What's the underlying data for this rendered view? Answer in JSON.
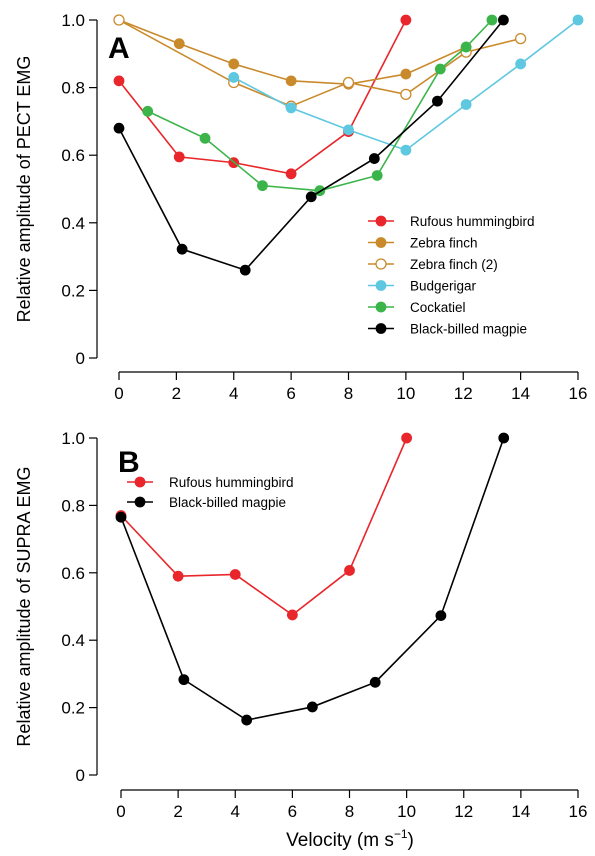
{
  "x_axis_label": "Velocity (m s",
  "x_axis_label_sup": "−1",
  "x_axis_label_end": ")",
  "chart_data": [
    {
      "type": "line",
      "panel_label": "A",
      "ylabel": "Relative amplitude of PECT EMG",
      "xlim": [
        0,
        16
      ],
      "ylim": [
        0,
        1.0
      ],
      "x_ticks": [
        0,
        2,
        4,
        6,
        8,
        10,
        12,
        14,
        16
      ],
      "y_ticks": [
        0,
        0.2,
        0.4,
        0.6,
        0.8,
        1.0
      ],
      "y_tick_labels": [
        "0",
        "0.2",
        "0.4",
        "0.6",
        "0.8",
        "1.0"
      ],
      "grid": false,
      "legend_position": "lower-right",
      "series": [
        {
          "name": "Rufous hummingbird",
          "color": "#e8262b",
          "marker": "filled",
          "x": [
            0,
            2.1,
            4,
            6,
            8,
            10
          ],
          "y": [
            0.82,
            0.595,
            0.578,
            0.545,
            0.67,
            1.0
          ]
        },
        {
          "name": "Zebra finch",
          "color": "#c98a2c",
          "marker": "filled",
          "x": [
            0,
            2.1,
            4,
            6,
            8,
            10,
            12.1
          ],
          "y": [
            1.0,
            0.93,
            0.87,
            0.82,
            0.81,
            0.84,
            0.92
          ]
        },
        {
          "name": "Zebra finch (2)",
          "color": "#c98a2c",
          "marker": "open",
          "x": [
            0,
            4,
            6,
            8,
            10,
            12.1,
            14
          ],
          "y": [
            1.0,
            0.815,
            0.745,
            0.815,
            0.78,
            0.905,
            0.945
          ]
        },
        {
          "name": "Budgerigar",
          "color": "#5ec8e0",
          "marker": "filled",
          "x": [
            4,
            6,
            8,
            10,
            12.1,
            14,
            16
          ],
          "y": [
            0.83,
            0.74,
            0.675,
            0.615,
            0.75,
            0.87,
            1.0
          ]
        },
        {
          "name": "Cockatiel",
          "color": "#3bb54a",
          "marker": "filled",
          "x": [
            1,
            3,
            5,
            7,
            9,
            11.2,
            12.1,
            13
          ],
          "y": [
            0.73,
            0.65,
            0.51,
            0.495,
            0.54,
            0.855,
            0.92,
            1.0
          ]
        },
        {
          "name": "Black-billed magpie",
          "color": "#000000",
          "marker": "filled",
          "x": [
            0,
            2.2,
            4.4,
            6.7,
            8.9,
            11.1,
            13.4
          ],
          "y": [
            0.68,
            0.322,
            0.26,
            0.477,
            0.59,
            0.76,
            1.0
          ]
        }
      ]
    },
    {
      "type": "line",
      "panel_label": "B",
      "ylabel": "Relative amplitude of SUPRA EMG",
      "xlim": [
        0,
        16
      ],
      "ylim": [
        0,
        1.0
      ],
      "x_ticks": [
        0,
        2,
        4,
        6,
        8,
        10,
        12,
        14,
        16
      ],
      "y_ticks": [
        0,
        0.2,
        0.4,
        0.6,
        0.8,
        1.0
      ],
      "y_tick_labels": [
        "0",
        "0.2",
        "0.4",
        "0.6",
        "0.8",
        "1.0"
      ],
      "grid": false,
      "legend_position": "top-left",
      "series": [
        {
          "name": "Rufous hummingbird",
          "color": "#e8262b",
          "marker": "filled",
          "x": [
            0,
            2,
            4,
            6,
            8,
            10
          ],
          "y": [
            0.77,
            0.59,
            0.595,
            0.475,
            0.607,
            1.0
          ]
        },
        {
          "name": "Black-billed magpie",
          "color": "#000000",
          "marker": "filled",
          "x": [
            0,
            2.2,
            4.4,
            6.7,
            8.9,
            11.2,
            13.4
          ],
          "y": [
            0.765,
            0.283,
            0.163,
            0.202,
            0.275,
            0.473,
            1.0
          ]
        }
      ]
    }
  ]
}
